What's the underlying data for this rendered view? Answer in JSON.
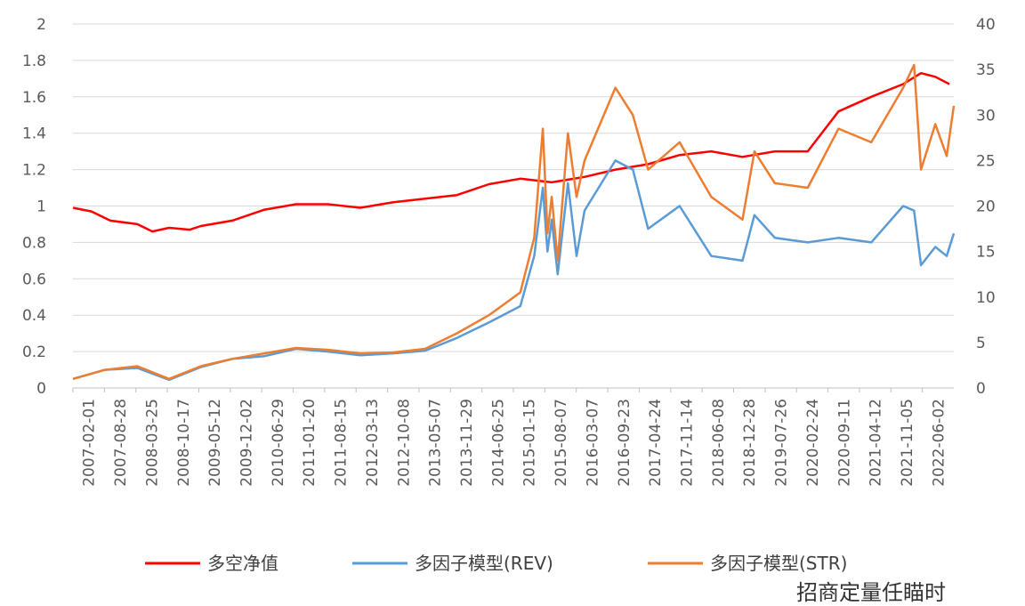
{
  "chart_data": {
    "type": "line",
    "x_tick_labels": [
      "2007-02-01",
      "2007-08-28",
      "2008-03-25",
      "2008-10-17",
      "2009-05-12",
      "2009-12-02",
      "2010-06-29",
      "2011-01-20",
      "2011-08-15",
      "2012-03-13",
      "2012-10-08",
      "2013-05-07",
      "2013-11-29",
      "2014-06-25",
      "2015-01-15",
      "2015-08-07",
      "2016-03-07",
      "2016-09-23",
      "2017-04-24",
      "2017-11-14",
      "2018-06-08",
      "2018-12-28",
      "2019-07-26",
      "2020-02-24",
      "2020-09-11",
      "2021-04-12",
      "2021-11-05",
      "2022-06-02"
    ],
    "y_left": {
      "min": 0,
      "max": 2,
      "ticks": [
        "0",
        "0.2",
        "0.4",
        "0.6",
        "0.8",
        "1",
        "1.2",
        "1.4",
        "1.6",
        "1.8",
        "2"
      ]
    },
    "y_right": {
      "min": 0,
      "max": 40,
      "ticks": [
        "0",
        "5",
        "10",
        "15",
        "20",
        "25",
        "30",
        "35",
        "40"
      ]
    },
    "grid": true,
    "legend_position": "bottom",
    "series": [
      {
        "name": "多空净值",
        "axis": "left",
        "color": "#ff0000",
        "x": [
          "2007-02-01",
          "2007-06-01",
          "2007-10-01",
          "2008-03-25",
          "2008-07-01",
          "2008-10-17",
          "2009-03-01",
          "2009-05-12",
          "2009-12-02",
          "2010-06-29",
          "2011-01-20",
          "2011-08-15",
          "2012-03-13",
          "2012-10-08",
          "2013-05-07",
          "2013-11-29",
          "2014-06-25",
          "2015-01-15",
          "2015-08-07",
          "2016-03-07",
          "2016-09-23",
          "2017-04-24",
          "2017-11-14",
          "2018-06-08",
          "2018-12-28",
          "2019-07-26",
          "2020-02-24",
          "2020-09-11",
          "2021-04-12",
          "2021-11-05",
          "2022-03-01",
          "2022-06-02",
          "2022-09-01"
        ],
        "values": [
          0.99,
          0.97,
          0.92,
          0.9,
          0.86,
          0.88,
          0.87,
          0.89,
          0.92,
          0.98,
          1.01,
          1.01,
          0.99,
          1.02,
          1.04,
          1.06,
          1.12,
          1.15,
          1.13,
          1.16,
          1.2,
          1.23,
          1.28,
          1.3,
          1.27,
          1.3,
          1.3,
          1.52,
          1.6,
          1.67,
          1.73,
          1.71,
          1.67
        ]
      },
      {
        "name": "多因子模型(REV)",
        "axis": "right",
        "color": "#5b9bd5",
        "x": [
          "2007-02-01",
          "2007-08-28",
          "2008-03-25",
          "2008-10-17",
          "2009-05-12",
          "2009-12-02",
          "2010-06-29",
          "2011-01-20",
          "2011-08-15",
          "2012-03-13",
          "2012-10-08",
          "2013-05-07",
          "2013-11-29",
          "2014-06-25",
          "2015-01-15",
          "2015-04-15",
          "2015-06-10",
          "2015-07-10",
          "2015-08-07",
          "2015-09-15",
          "2015-11-20",
          "2016-01-15",
          "2016-03-07",
          "2016-09-23",
          "2017-01-15",
          "2017-04-24",
          "2017-11-14",
          "2018-06-08",
          "2018-12-28",
          "2019-03-15",
          "2019-07-26",
          "2020-02-24",
          "2020-09-11",
          "2021-04-12",
          "2021-11-05",
          "2022-01-15",
          "2022-03-01",
          "2022-06-02",
          "2022-08-15",
          "2022-09-30"
        ],
        "values": [
          1,
          2,
          2.2,
          0.9,
          2.3,
          3.2,
          3.5,
          4.3,
          4.0,
          3.6,
          3.8,
          4.1,
          5.5,
          7.2,
          9.0,
          14.5,
          22.0,
          15.0,
          18.5,
          12.5,
          22.5,
          14.5,
          19.5,
          25.0,
          24.0,
          17.5,
          20.0,
          14.5,
          14.0,
          19.0,
          16.5,
          16.0,
          16.5,
          16.0,
          20.0,
          19.5,
          13.5,
          15.5,
          14.5,
          17.0
        ]
      },
      {
        "name": "多因子模型(STR)",
        "axis": "right",
        "color": "#ed7d31",
        "x": [
          "2007-02-01",
          "2007-08-28",
          "2008-03-25",
          "2008-10-17",
          "2009-05-12",
          "2009-12-02",
          "2010-06-29",
          "2011-01-20",
          "2011-08-15",
          "2012-03-13",
          "2012-10-08",
          "2013-05-07",
          "2013-11-29",
          "2014-06-25",
          "2015-01-15",
          "2015-04-15",
          "2015-06-10",
          "2015-07-10",
          "2015-08-07",
          "2015-09-15",
          "2015-11-20",
          "2016-01-15",
          "2016-03-07",
          "2016-09-23",
          "2017-01-15",
          "2017-04-24",
          "2017-11-14",
          "2018-06-08",
          "2018-12-28",
          "2019-03-15",
          "2019-07-26",
          "2020-02-24",
          "2020-09-11",
          "2021-04-12",
          "2021-11-05",
          "2022-01-15",
          "2022-03-01",
          "2022-06-02",
          "2022-08-15",
          "2022-09-30"
        ],
        "values": [
          1,
          2,
          2.4,
          1.0,
          2.4,
          3.2,
          3.8,
          4.4,
          4.2,
          3.8,
          3.9,
          4.3,
          6.0,
          8.0,
          10.5,
          16.5,
          28.5,
          17.0,
          21.0,
          14.0,
          28.0,
          21.0,
          25.0,
          33.0,
          30.0,
          24.0,
          27.0,
          21.0,
          18.5,
          26.0,
          22.5,
          22.0,
          28.5,
          27.0,
          33.0,
          35.5,
          24.0,
          29.0,
          25.5,
          31.0
        ]
      }
    ]
  },
  "watermark": "招商定量任瞄时"
}
